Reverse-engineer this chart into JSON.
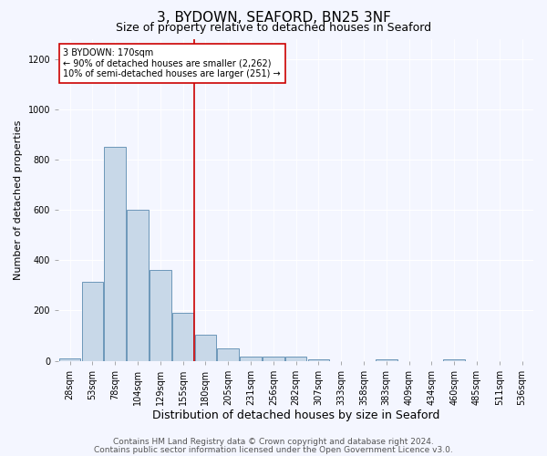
{
  "title1": "3, BYDOWN, SEAFORD, BN25 3NF",
  "title2": "Size of property relative to detached houses in Seaford",
  "xlabel": "Distribution of detached houses by size in Seaford",
  "ylabel": "Number of detached properties",
  "categories": [
    "28sqm",
    "53sqm",
    "78sqm",
    "104sqm",
    "129sqm",
    "155sqm",
    "180sqm",
    "205sqm",
    "231sqm",
    "256sqm",
    "282sqm",
    "307sqm",
    "333sqm",
    "358sqm",
    "383sqm",
    "409sqm",
    "434sqm",
    "460sqm",
    "485sqm",
    "511sqm",
    "536sqm"
  ],
  "bar_heights": [
    10,
    315,
    850,
    600,
    360,
    190,
    105,
    50,
    15,
    15,
    15,
    5,
    0,
    0,
    5,
    0,
    0,
    5,
    0,
    0,
    0
  ],
  "bar_color": "#c8d8e8",
  "bar_edge_color": "#5a8ab0",
  "red_line_index": 6,
  "red_line_color": "#cc0000",
  "annotation_text": "3 BYDOWN: 170sqm\n← 90% of detached houses are smaller (2,262)\n10% of semi-detached houses are larger (251) →",
  "annotation_box_color": "#ffffff",
  "annotation_box_edge": "#cc0000",
  "ylim": [
    0,
    1280
  ],
  "yticks": [
    0,
    200,
    400,
    600,
    800,
    1000,
    1200
  ],
  "footer1": "Contains HM Land Registry data © Crown copyright and database right 2024.",
  "footer2": "Contains public sector information licensed under the Open Government Licence v3.0.",
  "bg_color": "#f4f6ff",
  "plot_bg_color": "#f4f6ff",
  "title1_fontsize": 11,
  "title2_fontsize": 9,
  "xlabel_fontsize": 9,
  "ylabel_fontsize": 8,
  "tick_fontsize": 7,
  "annotation_fontsize": 7,
  "footer_fontsize": 6.5
}
